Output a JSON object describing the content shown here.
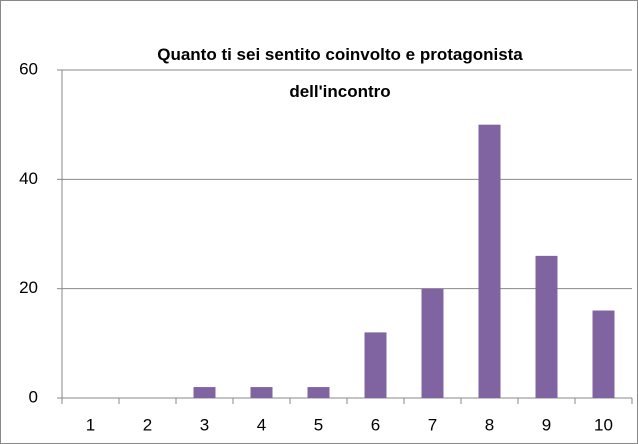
{
  "chart_data": {
    "type": "bar",
    "title": "Quanto ti sei sentito coinvolto e protagonista dell'incontro",
    "categories": [
      "1",
      "2",
      "3",
      "4",
      "5",
      "6",
      "7",
      "8",
      "9",
      "10"
    ],
    "values": [
      0,
      0,
      2,
      2,
      2,
      12,
      20,
      50,
      26,
      16
    ],
    "color": "#8064a2",
    "ylim": [
      0,
      60
    ],
    "yticks": [
      0,
      20,
      40,
      60
    ],
    "grid": true
  }
}
